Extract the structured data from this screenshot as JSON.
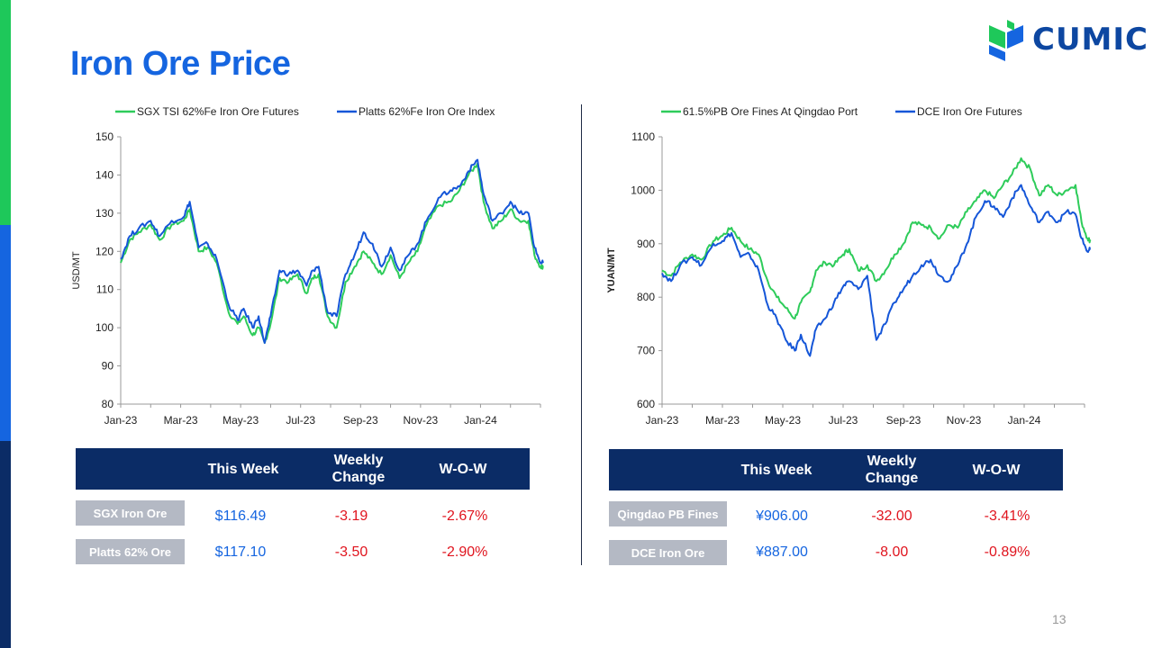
{
  "title": "Iron Ore Price",
  "logo_text": "CUMIC",
  "page_number": "13",
  "colors": {
    "title": "#1565e0",
    "green": "#2ecc5a",
    "blue": "#1556d8",
    "header_bg": "#0b2c66",
    "label_bg": "#b4b9c4",
    "negative": "#e0141e"
  },
  "chart_data": [
    {
      "type": "line",
      "legend": [
        "SGX TSI 62%Fe Iron Ore Futures",
        "Platts 62%Fe Iron Ore Index"
      ],
      "ylabel": "USD/MT",
      "ylim": [
        80,
        150
      ],
      "yticks": [
        80,
        90,
        100,
        110,
        120,
        130,
        140,
        150
      ],
      "xticks": [
        "Jan-23",
        "Mar-23",
        "May-23",
        "Jul-23",
        "Sep-23",
        "Nov-23",
        "Jan-24"
      ],
      "x": [
        "Jan-23",
        "Feb-23",
        "Mar-23",
        "Apr-23",
        "May-23",
        "Jun-23",
        "Jul-23",
        "Aug-23",
        "Sep-23",
        "Oct-23",
        "Nov-23",
        "Dec-23",
        "Jan-24",
        "Feb-24",
        "Mar-24"
      ],
      "series": [
        {
          "name": "SGX TSI 62%Fe Iron Ore Futures",
          "color": "#2ecc5a",
          "points": [
            [
              0,
              117
            ],
            [
              0.3,
              123
            ],
            [
              0.6,
              125
            ],
            [
              1.0,
              127
            ],
            [
              1.3,
              123
            ],
            [
              1.7,
              127
            ],
            [
              2.1,
              128
            ],
            [
              2.3,
              131
            ],
            [
              2.6,
              120
            ],
            [
              2.9,
              121
            ],
            [
              3.2,
              117
            ],
            [
              3.6,
              104
            ],
            [
              3.9,
              101
            ],
            [
              4.1,
              103
            ],
            [
              4.4,
              98
            ],
            [
              4.6,
              100
            ],
            [
              4.8,
              96
            ],
            [
              5.0,
              101
            ],
            [
              5.3,
              113
            ],
            [
              5.6,
              112
            ],
            [
              5.9,
              114
            ],
            [
              6.2,
              109
            ],
            [
              6.4,
              113
            ],
            [
              6.6,
              114
            ],
            [
              6.9,
              103
            ],
            [
              7.2,
              100
            ],
            [
              7.5,
              112
            ],
            [
              7.8,
              116
            ],
            [
              8.1,
              120
            ],
            [
              8.4,
              117
            ],
            [
              8.7,
              114
            ],
            [
              9.0,
              119
            ],
            [
              9.3,
              113
            ],
            [
              9.6,
              117
            ],
            [
              9.9,
              120
            ],
            [
              10.2,
              127
            ],
            [
              10.6,
              132
            ],
            [
              11.0,
              133
            ],
            [
              11.3,
              136
            ],
            [
              11.6,
              140
            ],
            [
              11.9,
              143
            ],
            [
              12.1,
              133
            ],
            [
              12.4,
              126
            ],
            [
              12.7,
              128
            ],
            [
              13.0,
              131
            ],
            [
              13.3,
              128
            ],
            [
              13.6,
              128
            ],
            [
              13.8,
              119
            ],
            [
              14.0,
              116
            ],
            [
              14.1,
              116
            ]
          ]
        },
        {
          "name": "Platts 62%Fe Iron Ore Index",
          "color": "#1556d8",
          "points": [
            [
              0,
              118
            ],
            [
              0.3,
              124
            ],
            [
              0.6,
              126
            ],
            [
              1.0,
              128
            ],
            [
              1.3,
              124
            ],
            [
              1.7,
              128
            ],
            [
              2.1,
              129
            ],
            [
              2.3,
              133
            ],
            [
              2.6,
              121
            ],
            [
              2.9,
              122
            ],
            [
              3.2,
              118
            ],
            [
              3.6,
              106
            ],
            [
              3.9,
              102
            ],
            [
              4.1,
              105
            ],
            [
              4.4,
              100
            ],
            [
              4.6,
              103
            ],
            [
              4.8,
              96
            ],
            [
              5.0,
              103
            ],
            [
              5.3,
              115
            ],
            [
              5.6,
              114
            ],
            [
              5.9,
              115
            ],
            [
              6.2,
              111
            ],
            [
              6.4,
              115
            ],
            [
              6.6,
              116
            ],
            [
              6.9,
              104
            ],
            [
              7.2,
              103
            ],
            [
              7.5,
              114
            ],
            [
              7.8,
              119
            ],
            [
              8.1,
              125
            ],
            [
              8.4,
              122
            ],
            [
              8.7,
              116
            ],
            [
              9.0,
              121
            ],
            [
              9.3,
              115
            ],
            [
              9.6,
              119
            ],
            [
              9.9,
              122
            ],
            [
              10.2,
              128
            ],
            [
              10.6,
              134
            ],
            [
              11.0,
              136
            ],
            [
              11.3,
              137
            ],
            [
              11.6,
              141
            ],
            [
              11.9,
              144
            ],
            [
              12.1,
              135
            ],
            [
              12.4,
              128
            ],
            [
              12.7,
              130
            ],
            [
              13.0,
              133
            ],
            [
              13.3,
              130
            ],
            [
              13.6,
              130
            ],
            [
              13.8,
              121
            ],
            [
              14.0,
              117
            ],
            [
              14.1,
              117
            ]
          ]
        }
      ]
    },
    {
      "type": "line",
      "legend": [
        "61.5%PB Ore Fines At Qingdao Port",
        "DCE Iron Ore Futures"
      ],
      "ylabel": "YUAN/MT",
      "ylim": [
        600,
        1100
      ],
      "yticks": [
        600,
        700,
        800,
        900,
        1000,
        1100
      ],
      "xticks": [
        "Jan-23",
        "Mar-23",
        "May-23",
        "Jul-23",
        "Sep-23",
        "Nov-23",
        "Jan-24"
      ],
      "x": [
        "Jan-23",
        "Feb-23",
        "Mar-23",
        "Apr-23",
        "May-23",
        "Jun-23",
        "Jul-23",
        "Aug-23",
        "Sep-23",
        "Oct-23",
        "Nov-23",
        "Dec-23",
        "Jan-24",
        "Feb-24",
        "Mar-24"
      ],
      "series": [
        {
          "name": "61.5%PB Ore Fines At Qingdao Port",
          "color": "#2ecc5a",
          "points": [
            [
              0,
              850
            ],
            [
              0.3,
              840
            ],
            [
              0.6,
              865
            ],
            [
              1.0,
              880
            ],
            [
              1.3,
              870
            ],
            [
              1.7,
              905
            ],
            [
              2.0,
              915
            ],
            [
              2.3,
              930
            ],
            [
              2.6,
              905
            ],
            [
              2.9,
              890
            ],
            [
              3.2,
              880
            ],
            [
              3.5,
              830
            ],
            [
              3.8,
              800
            ],
            [
              4.1,
              780
            ],
            [
              4.4,
              760
            ],
            [
              4.6,
              790
            ],
            [
              4.9,
              810
            ],
            [
              5.1,
              850
            ],
            [
              5.4,
              865
            ],
            [
              5.7,
              860
            ],
            [
              6.0,
              880
            ],
            [
              6.2,
              890
            ],
            [
              6.5,
              850
            ],
            [
              6.8,
              860
            ],
            [
              7.1,
              830
            ],
            [
              7.4,
              850
            ],
            [
              7.7,
              880
            ],
            [
              8.0,
              900
            ],
            [
              8.3,
              940
            ],
            [
              8.6,
              935
            ],
            [
              8.9,
              930
            ],
            [
              9.2,
              910
            ],
            [
              9.5,
              935
            ],
            [
              9.8,
              930
            ],
            [
              10.1,
              960
            ],
            [
              10.4,
              980
            ],
            [
              10.7,
              1000
            ],
            [
              11.0,
              985
            ],
            [
              11.3,
              1010
            ],
            [
              11.6,
              1030
            ],
            [
              11.9,
              1060
            ],
            [
              12.2,
              1040
            ],
            [
              12.5,
              990
            ],
            [
              12.8,
              1010
            ],
            [
              13.1,
              990
            ],
            [
              13.4,
              1000
            ],
            [
              13.7,
              1010
            ],
            [
              13.9,
              940
            ],
            [
              14.1,
              910
            ],
            [
              14.2,
              905
            ]
          ]
        },
        {
          "name": "DCE Iron Ore Futures",
          "color": "#1556d8",
          "points": [
            [
              0,
              845
            ],
            [
              0.3,
              830
            ],
            [
              0.6,
              860
            ],
            [
              1.0,
              875
            ],
            [
              1.3,
              860
            ],
            [
              1.7,
              900
            ],
            [
              2.0,
              905
            ],
            [
              2.3,
              920
            ],
            [
              2.6,
              875
            ],
            [
              2.9,
              880
            ],
            [
              3.2,
              850
            ],
            [
              3.5,
              785
            ],
            [
              3.8,
              760
            ],
            [
              4.1,
              720
            ],
            [
              4.4,
              700
            ],
            [
              4.6,
              730
            ],
            [
              4.9,
              690
            ],
            [
              5.1,
              740
            ],
            [
              5.4,
              760
            ],
            [
              5.7,
              790
            ],
            [
              6.0,
              820
            ],
            [
              6.2,
              830
            ],
            [
              6.5,
              815
            ],
            [
              6.8,
              840
            ],
            [
              7.1,
              720
            ],
            [
              7.4,
              750
            ],
            [
              7.7,
              790
            ],
            [
              8.0,
              815
            ],
            [
              8.3,
              840
            ],
            [
              8.6,
              860
            ],
            [
              8.9,
              870
            ],
            [
              9.2,
              840
            ],
            [
              9.5,
              830
            ],
            [
              9.8,
              860
            ],
            [
              10.1,
              900
            ],
            [
              10.4,
              950
            ],
            [
              10.7,
              980
            ],
            [
              11.0,
              970
            ],
            [
              11.3,
              950
            ],
            [
              11.6,
              985
            ],
            [
              11.9,
              1010
            ],
            [
              12.2,
              970
            ],
            [
              12.5,
              940
            ],
            [
              12.8,
              960
            ],
            [
              13.1,
              940
            ],
            [
              13.4,
              960
            ],
            [
              13.7,
              955
            ],
            [
              13.9,
              910
            ],
            [
              14.1,
              885
            ],
            [
              14.2,
              890
            ]
          ]
        }
      ]
    }
  ],
  "table_left": {
    "headers": [
      "This Week",
      "Weekly Change",
      "W-O-W"
    ],
    "rows": [
      {
        "label": "SGX Iron Ore",
        "this_week": "$116.49",
        "change": "-3.19",
        "wow": "-2.67%"
      },
      {
        "label": "Platts 62% Ore",
        "this_week": "$117.10",
        "change": "-3.50",
        "wow": "-2.90%"
      }
    ]
  },
  "table_right": {
    "headers": [
      "This Week",
      "Weekly Change",
      "W-O-W"
    ],
    "rows": [
      {
        "label": "Qingdao PB Fines",
        "this_week": "¥906.00",
        "change": "-32.00",
        "wow": "-3.41%"
      },
      {
        "label": "DCE Iron Ore",
        "this_week": "¥887.00",
        "change": "-8.00",
        "wow": "-0.89%"
      }
    ]
  }
}
